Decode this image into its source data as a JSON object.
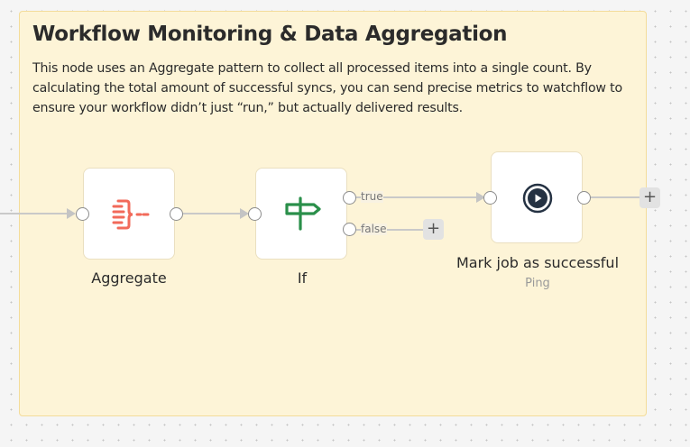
{
  "sticky_note": {
    "title": "Workflow Monitoring & Data Aggregation",
    "body": "This node uses an Aggregate pattern to collect all processed items into a single count. By calculating the total amount of successful syncs, you can send precise metrics to watchflow to ensure your workflow didn’t just “run,” but actually delivered results."
  },
  "nodes": [
    {
      "name": "Aggregate",
      "icon": "aggregate-icon",
      "color": "#f26a5a"
    },
    {
      "name": "If",
      "icon": "signpost-icon",
      "color": "#2a8f4a",
      "outputs": [
        "true",
        "false"
      ]
    },
    {
      "name": "Mark job as successful",
      "subtitle": "Ping",
      "icon": "play-circle-icon",
      "color": "#253243"
    }
  ],
  "add_button_label": "+"
}
